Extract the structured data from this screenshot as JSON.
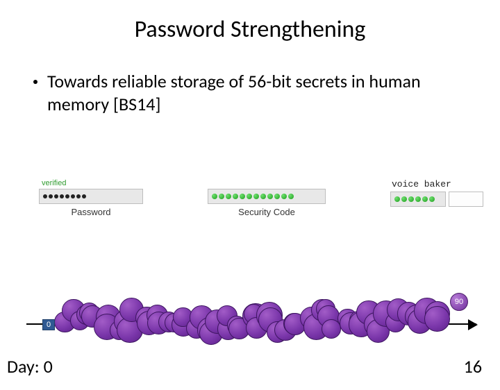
{
  "title": "Password Strengthening",
  "bullet": "Towards reliable storage of 56-bit secrets in human memory [BS14]",
  "password_field": {
    "verified_label": "verified",
    "label": "Password",
    "mask_dots": 8,
    "bg": "#e8e8e8"
  },
  "security_field": {
    "label": "Security Code",
    "green_dots": 12,
    "bg": "#e8e8e8",
    "dot_color": "#2e9b2e"
  },
  "voice_field": {
    "label": "voice baker",
    "green_dots": 6,
    "bg1": "#e8e8e8",
    "bg2": "#fdfdfd"
  },
  "timeline": {
    "start_label": "0",
    "end_label": "90",
    "start_chip_bg": "#2f5a93",
    "end_circle_bg": "#7a36aa",
    "axis_color": "#000000"
  },
  "blob": {
    "fill": "#7a36aa",
    "stroke": "#3d1560",
    "circle_diameter": 32,
    "count": 60
  },
  "day_prefix": "Day: ",
  "day_value": "0",
  "page_number": "16",
  "colors": {
    "text": "#000000",
    "verified": "#2e9b2e",
    "purple": "#7a36aa"
  }
}
